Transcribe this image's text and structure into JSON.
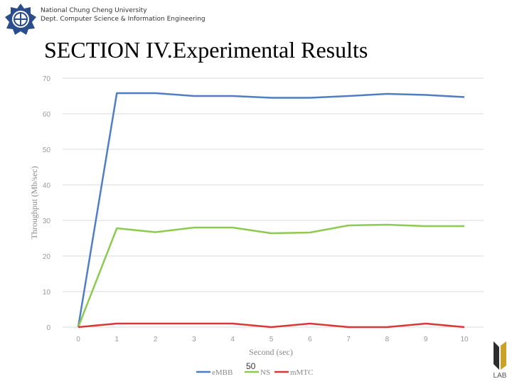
{
  "header": {
    "university": "National Chung Cheng University",
    "department": "Dept. Computer Science & Information Engineering",
    "slide_title": "SECTION IV.Experimental Results",
    "page_number": "50",
    "lab_text": "LAB"
  },
  "colors": {
    "embb": "#4f7ec4",
    "ns": "#8ccb50",
    "mmtc": "#d63a36",
    "grid": "#d9d9d9",
    "tick": "#9a9a9a"
  },
  "chart_data": {
    "type": "line",
    "xlabel": "Second (sec)",
    "ylabel": "Throughput (Mb/sec)",
    "xlim": [
      0,
      10
    ],
    "ylim": [
      0,
      70
    ],
    "x": [
      0,
      1,
      2,
      3,
      4,
      5,
      6,
      7,
      8,
      9,
      10
    ],
    "y_ticks": [
      0,
      10,
      20,
      30,
      40,
      50,
      60,
      70
    ],
    "grid": true,
    "legend_position": "bottom",
    "series": [
      {
        "name": "eMBB",
        "values": [
          0,
          65.8,
          65.8,
          65.0,
          65.0,
          64.5,
          64.5,
          65.0,
          65.6,
          65.3,
          64.7
        ]
      },
      {
        "name": "NS",
        "values": [
          0,
          27.8,
          26.7,
          28.0,
          28.0,
          26.4,
          26.6,
          28.6,
          28.8,
          28.4,
          28.4
        ]
      },
      {
        "name": "mMTC",
        "values": [
          0,
          1.0,
          1.0,
          1.0,
          1.0,
          0,
          1.0,
          0,
          0,
          1.0,
          0
        ]
      }
    ]
  }
}
